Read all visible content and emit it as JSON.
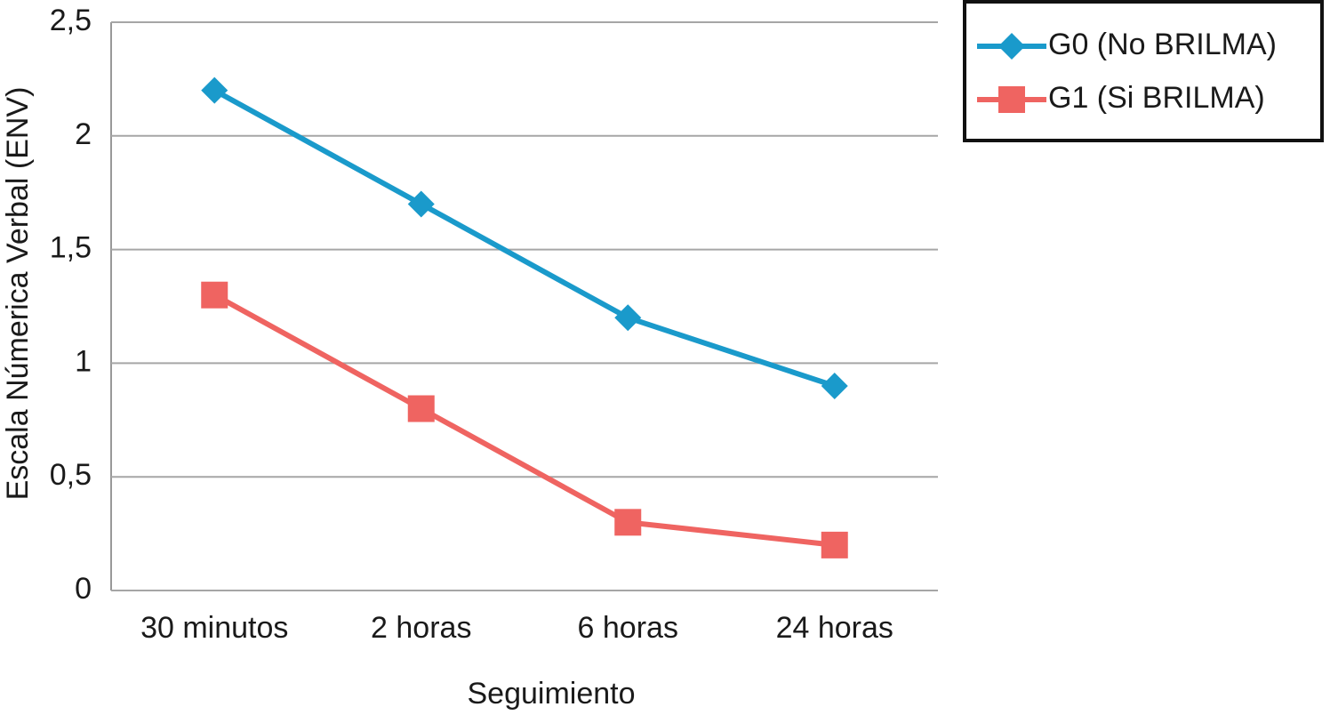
{
  "chart_data": {
    "type": "line",
    "x_label": "Seguimiento",
    "y_label": "Escala Númerica Verbal (ENV)",
    "categories": [
      "30 minutos",
      "2 horas",
      "6 horas",
      "24 horas"
    ],
    "series": [
      {
        "name": "G0 (No BRILMA)",
        "color": "#1a9acb",
        "marker": "diamond",
        "values": [
          2.2,
          1.7,
          1.2,
          0.9
        ]
      },
      {
        "name": "G1 (Si BRILMA)",
        "color": "#ef6461",
        "marker": "square",
        "values": [
          1.3,
          0.8,
          0.3,
          0.2
        ]
      }
    ],
    "ylim": [
      0,
      2.5
    ],
    "yticks": [
      0,
      {
        "value": 0.5,
        "label": "0,5"
      },
      1,
      {
        "value": 1.5,
        "label": "1,5"
      },
      2,
      {
        "value": 2.5,
        "label": "2,5"
      }
    ],
    "grid": true,
    "legend": "top-right"
  }
}
